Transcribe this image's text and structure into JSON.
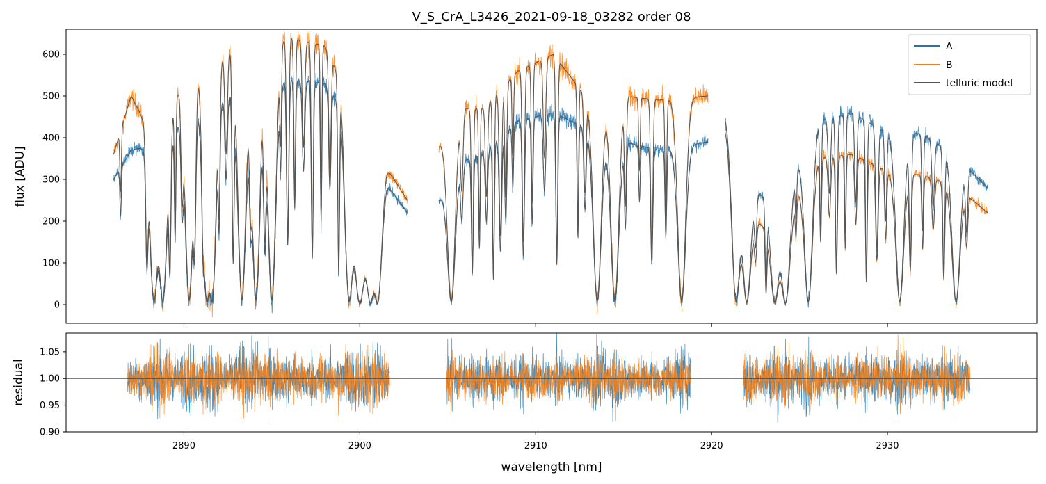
{
  "chart_data": [
    {
      "type": "line",
      "title": "V_S_CrA_L3426_2021-09-18_03282  order 08",
      "xlabel": "",
      "ylabel": "flux [ADU]",
      "xlim": [
        2883.3,
        2938.5
      ],
      "ylim": [
        -45,
        660
      ],
      "yticks": [
        0,
        100,
        200,
        300,
        400,
        500,
        600
      ],
      "xticks": [
        2890,
        2900,
        2910,
        2920,
        2930
      ],
      "legend": {
        "position": "top-right",
        "entries": [
          "A",
          "B",
          "telluric model"
        ]
      },
      "segments": [
        [
          2886.0,
          2902.7
        ],
        [
          2904.5,
          2919.8
        ],
        [
          2920.8,
          2935.7
        ]
      ],
      "series": [
        {
          "name": "A",
          "color": "#1f77b4",
          "continuum": [
            [
              2886,
              300
            ],
            [
              2887,
              370
            ],
            [
              2888,
              380
            ],
            [
              2889,
              360
            ],
            [
              2890,
              470
            ],
            [
              2891,
              540
            ],
            [
              2892,
              500
            ],
            [
              2894,
              520
            ],
            [
              2896,
              540
            ],
            [
              2898,
              530
            ],
            [
              2899,
              470
            ],
            [
              2900,
              140
            ],
            [
              2901.5,
              290
            ],
            [
              2902.7,
              220
            ],
            [
              2904.5,
              250
            ],
            [
              2905.5,
              340
            ],
            [
              2907,
              360
            ],
            [
              2909,
              440
            ],
            [
              2911,
              460
            ],
            [
              2913,
              420
            ],
            [
              2915,
              390
            ],
            [
              2917,
              370
            ],
            [
              2919.8,
              390
            ],
            [
              2920.8,
              450
            ],
            [
              2922,
              300
            ],
            [
              2924,
              210
            ],
            [
              2925,
              350
            ],
            [
              2926,
              440
            ],
            [
              2928,
              460
            ],
            [
              2930,
              410
            ],
            [
              2932,
              410
            ],
            [
              2934,
              350
            ],
            [
              2935.7,
              280
            ]
          ]
        },
        {
          "name": "B",
          "color": "#ff7f0e",
          "continuum": [
            [
              2886,
              360
            ],
            [
              2887,
              500
            ],
            [
              2888,
              420
            ],
            [
              2889,
              420
            ],
            [
              2890,
              560
            ],
            [
              2891,
              640
            ],
            [
              2892,
              600
            ],
            [
              2894,
              630
            ],
            [
              2896,
              640
            ],
            [
              2898,
              620
            ],
            [
              2899,
              530
            ],
            [
              2900,
              140
            ],
            [
              2901.5,
              330
            ],
            [
              2902.7,
              250
            ],
            [
              2904.5,
              380
            ],
            [
              2905.5,
              470
            ],
            [
              2907,
              470
            ],
            [
              2909,
              560
            ],
            [
              2911,
              600
            ],
            [
              2913,
              490
            ],
            [
              2915,
              500
            ],
            [
              2917,
              490
            ],
            [
              2919.8,
              500
            ],
            [
              2920.8,
              420
            ],
            [
              2922,
              220
            ],
            [
              2924,
              150
            ],
            [
              2925,
              280
            ],
            [
              2926,
              350
            ],
            [
              2928,
              360
            ],
            [
              2930,
              320
            ],
            [
              2932,
              310
            ],
            [
              2934,
              280
            ],
            [
              2935.7,
              220
            ]
          ]
        },
        {
          "name": "telluric model",
          "color": "#555555"
        }
      ]
    },
    {
      "type": "line",
      "title": "",
      "xlabel": "wavelength [nm]",
      "ylabel": "residual",
      "xlim": [
        2883.3,
        2938.5
      ],
      "ylim": [
        0.9,
        1.085
      ],
      "yticks": [
        0.9,
        0.95,
        1.0,
        1.05
      ],
      "xticks": [
        2890,
        2900,
        2910,
        2920,
        2930
      ],
      "reference_line": 1.0,
      "segments": [
        [
          2886.8,
          2901.7
        ],
        [
          2904.9,
          2918.8
        ],
        [
          2921.8,
          2934.7
        ]
      ],
      "series": [
        {
          "name": "A",
          "color": "#1f77b4",
          "center": 1.0,
          "spread": 0.035
        },
        {
          "name": "B",
          "color": "#ff7f0e",
          "center": 1.0,
          "spread": 0.032
        }
      ]
    }
  ]
}
